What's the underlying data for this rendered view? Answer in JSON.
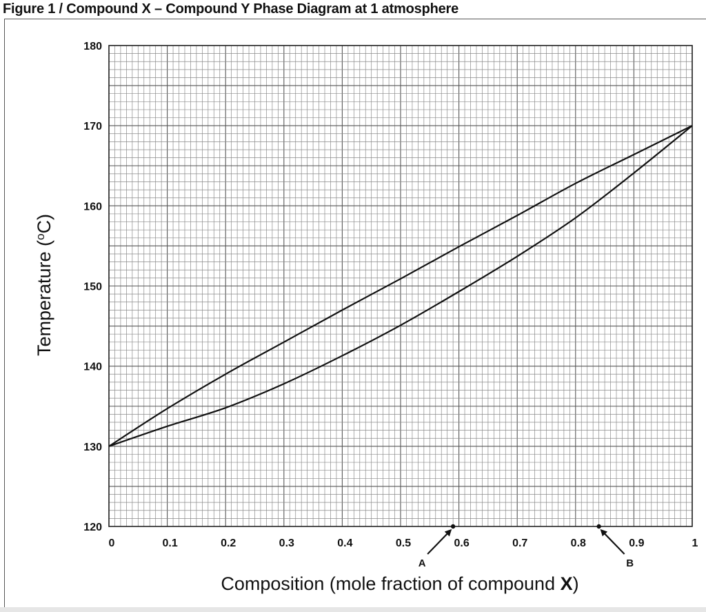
{
  "figure": {
    "title": "Figure 1 / Compound X – Compound Y Phase Diagram at 1 atmosphere"
  },
  "chart_data": {
    "type": "line",
    "title": "Figure 1 / Compound X – Compound Y Phase Diagram at 1 atmosphere",
    "xlabel_main": "Composition (mole fraction of compound ",
    "xlabel_bold": "X",
    "xlabel_end": ")",
    "ylabel": "Temperature (oC)",
    "ylabel_base": "Temperature (",
    "ylabel_sup": "o",
    "ylabel_end": "C)",
    "xlim": [
      0,
      1
    ],
    "ylim": [
      120,
      180
    ],
    "x_ticks": [
      "0",
      "0.1",
      "0.2",
      "0.3",
      "0.4",
      "0.5",
      "0.6",
      "0.7",
      "0.8",
      "0.9",
      "1"
    ],
    "y_ticks": [
      "120",
      "130",
      "140",
      "150",
      "160",
      "170",
      "180"
    ],
    "grid": true,
    "series": [
      {
        "x": [
          0,
          0.1,
          0.2,
          0.3,
          0.4,
          0.5,
          0.6,
          0.7,
          0.8,
          0.9,
          1.0
        ],
        "y": [
          130,
          134.7,
          139.0,
          143.0,
          147.0,
          150.9,
          154.9,
          158.8,
          162.8,
          166.4,
          170
        ]
      },
      {
        "x": [
          0,
          0.1,
          0.2,
          0.3,
          0.4,
          0.5,
          0.6,
          0.7,
          0.8,
          0.9,
          1.0
        ],
        "y": [
          130,
          132.5,
          134.8,
          137.8,
          141.3,
          145.1,
          149.3,
          153.7,
          158.5,
          164.1,
          170
        ]
      }
    ],
    "markers": [
      {
        "label": "A",
        "x": 0.59,
        "y": 120
      },
      {
        "label": "B",
        "x": 0.84,
        "y": 120
      }
    ]
  }
}
